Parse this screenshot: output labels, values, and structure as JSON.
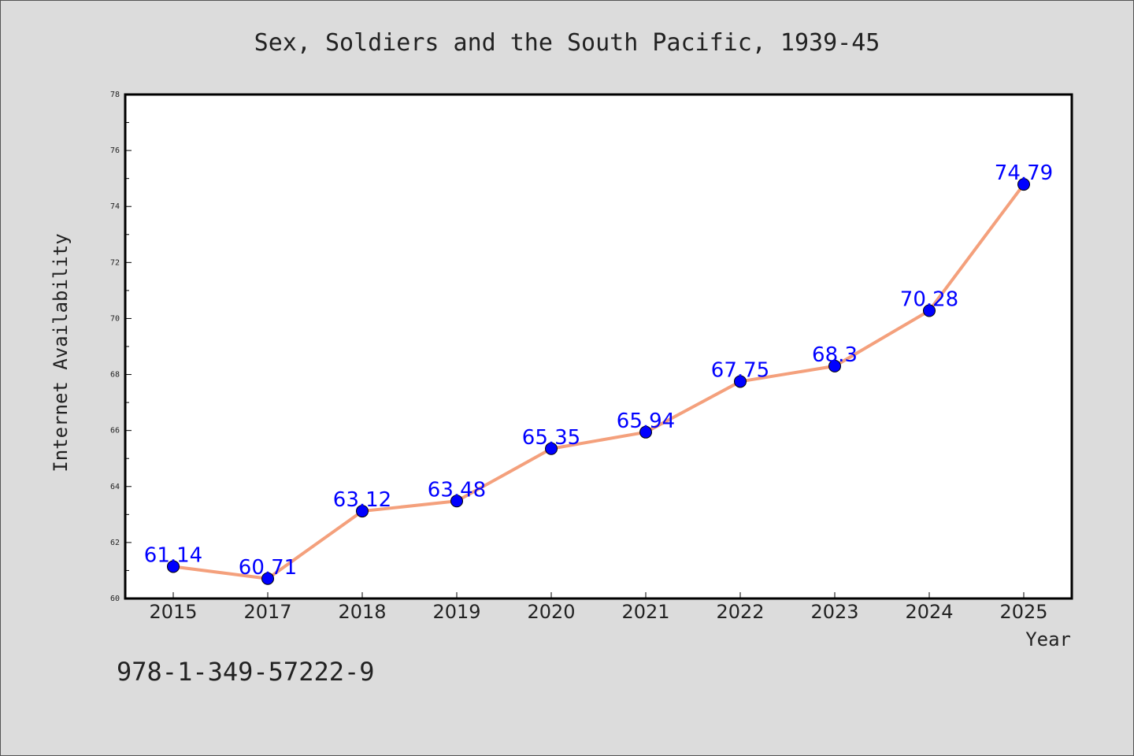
{
  "chart_data": {
    "type": "line",
    "title": "Sex, Soldiers and the South Pacific, 1939-45",
    "xlabel": "Year",
    "ylabel": "Internet Availability",
    "categories": [
      "2015",
      "2017",
      "2018",
      "2019",
      "2020",
      "2021",
      "2022",
      "2023",
      "2024",
      "2025"
    ],
    "series": [
      {
        "values": [
          61.14,
          60.71,
          63.12,
          63.48,
          65.35,
          65.94,
          67.75,
          68.3,
          70.28,
          74.79
        ],
        "labels": [
          "61.14",
          "60.71",
          "63.12",
          "63.48",
          "65.35",
          "65.94",
          "67.75",
          "68.3",
          "70.28",
          "74.79"
        ],
        "line_color": "#f4a07c",
        "marker_color": "#0000ff"
      }
    ],
    "ylim": [
      60,
      78
    ],
    "yticks": [
      "60",
      "62",
      "64",
      "66",
      "68",
      "70",
      "72",
      "74",
      "76",
      "78"
    ],
    "grid": false,
    "legend": "none"
  },
  "footer": {
    "isbn": "978-1-349-57222-9"
  }
}
